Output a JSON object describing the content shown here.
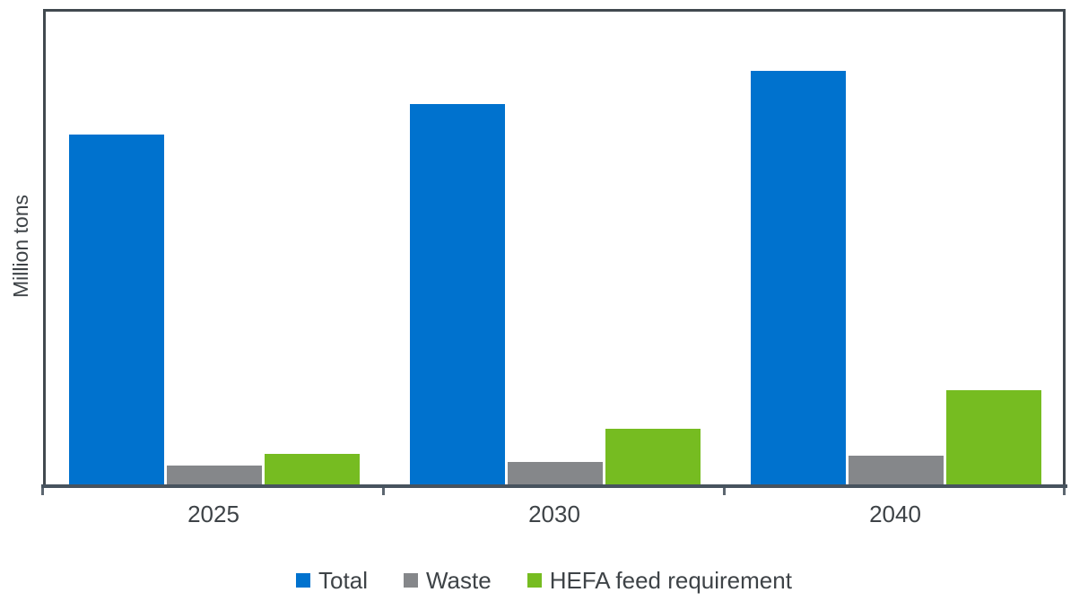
{
  "chart_data": {
    "type": "bar",
    "title": "",
    "xlabel": "",
    "ylabel": "Million tons",
    "categories": [
      "2025",
      "2030",
      "2040"
    ],
    "series": [
      {
        "name": "Total",
        "color": "#0072CE",
        "values": [
          73.5,
          80.0,
          87.0
        ]
      },
      {
        "name": "Waste",
        "color": "#85878A",
        "values": [
          4.0,
          4.7,
          6.0
        ]
      },
      {
        "name": "HEFA feed requirement",
        "color": "#76BC21",
        "values": [
          6.5,
          11.7,
          19.8
        ]
      }
    ],
    "ylim": [
      0,
      100
    ],
    "y_tick_labels": [],
    "grid": false,
    "legend_position": "bottom",
    "units_note": "Y axis shows no numeric tick labels; series values estimated as percent of full axis height"
  },
  "colors": {
    "frame": "#41494F",
    "baseline": "#47535E",
    "tick": "#5C6670",
    "text": "#3E4347",
    "background": "#FFFFFF"
  }
}
